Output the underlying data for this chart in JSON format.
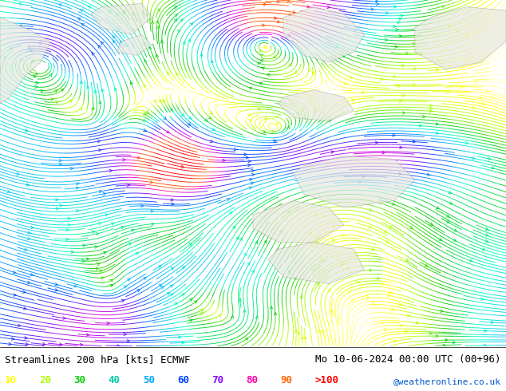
{
  "title_left": "Streamlines 200 hPa [kts] ECMWF",
  "title_right": "Mo 10-06-2024 00:00 UTC (00+96)",
  "watermark": "@weatheronline.co.uk",
  "legend_values": [
    "10",
    "20",
    "30",
    "40",
    "50",
    "60",
    "70",
    "80",
    "90",
    ">100"
  ],
  "legend_colors": [
    "#ffff00",
    "#aaff00",
    "#00cc00",
    "#00ccaa",
    "#00aaff",
    "#0044ff",
    "#8800ff",
    "#ff00aa",
    "#ff6600",
    "#ff0000"
  ],
  "fig_width": 6.34,
  "fig_height": 4.9,
  "dpi": 100,
  "map_bg": "#ffffff",
  "title_fontsize": 9,
  "legend_fontsize": 9,
  "speed_colors": [
    [
      0,
      "#ffffff"
    ],
    [
      5,
      "#ffff99"
    ],
    [
      10,
      "#ffff00"
    ],
    [
      20,
      "#aaff00"
    ],
    [
      30,
      "#00cc00"
    ],
    [
      40,
      "#00ffcc"
    ],
    [
      50,
      "#00aaff"
    ],
    [
      60,
      "#0044ff"
    ],
    [
      70,
      "#8800ff"
    ],
    [
      80,
      "#ff00cc"
    ],
    [
      90,
      "#ff6600"
    ],
    [
      100,
      "#ff0000"
    ],
    [
      120,
      "#ff0000"
    ]
  ]
}
